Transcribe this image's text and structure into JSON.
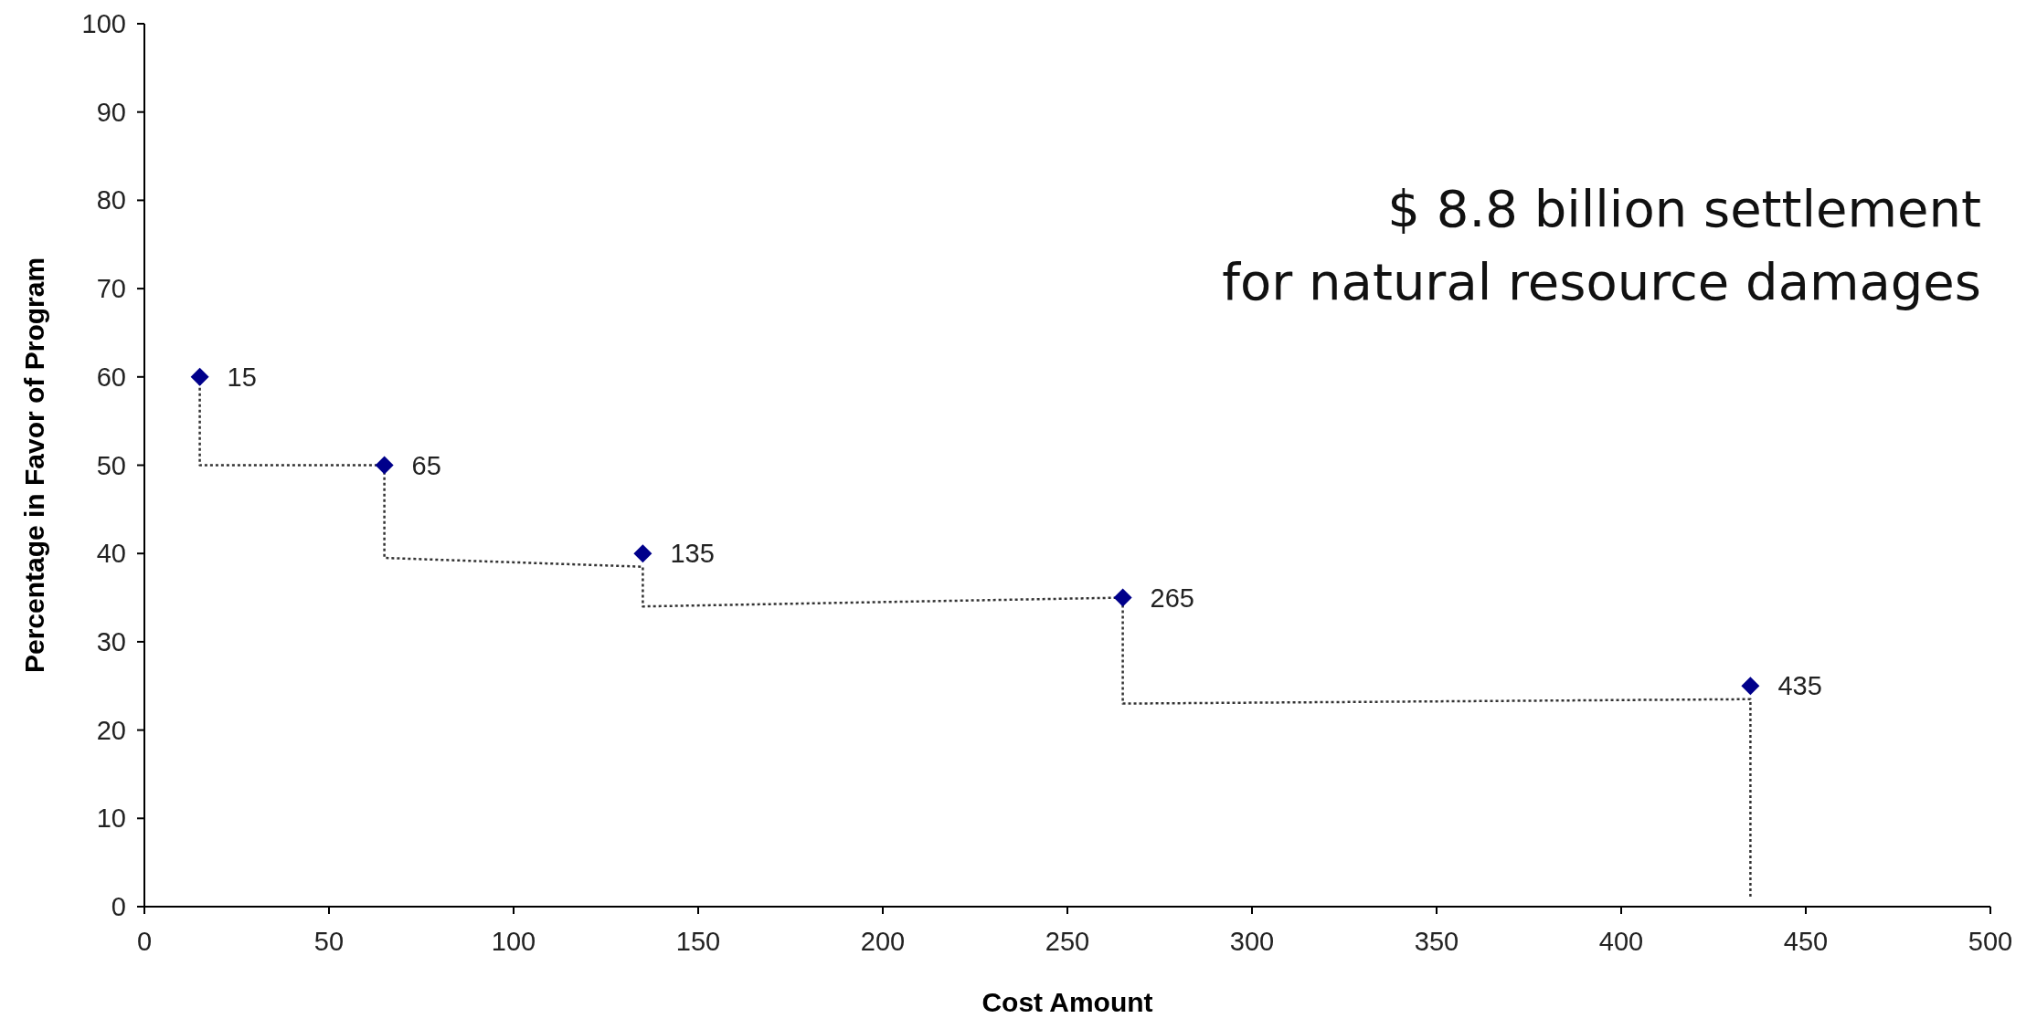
{
  "chart_data": {
    "type": "scatter",
    "xlabel": "Cost Amount",
    "ylabel": "Percentage in Favor of Program",
    "xlim": [
      0,
      500
    ],
    "xticks": [
      0,
      50,
      100,
      150,
      200,
      250,
      300,
      350,
      400,
      450,
      500
    ],
    "ylim": [
      0,
      100
    ],
    "yticks": [
      0,
      10,
      20,
      30,
      40,
      50,
      60,
      70,
      80,
      90,
      100
    ],
    "series": [
      {
        "type": "line",
        "x": [
          15,
          15,
          65,
          65,
          135,
          135,
          265,
          265,
          435,
          435
        ],
        "values": [
          60,
          50,
          50,
          39.5,
          38.5,
          34,
          35,
          23,
          23.5,
          1
        ],
        "color": "#333333",
        "line_style": "dotted",
        "marker": "none"
      },
      {
        "x": [
          15,
          65,
          135,
          265,
          435
        ],
        "values": [
          60,
          50,
          40,
          35,
          25
        ],
        "color": "#00008b",
        "marker": "diamond"
      }
    ],
    "annotations": [
      "$ 8.8 billion settlement\nfor natural resource damages",
      {
        "text": "15",
        "x": 15,
        "y": 60
      },
      {
        "text": "65",
        "x": 65,
        "y": 50
      },
      {
        "text": "135",
        "x": 135,
        "y": 40
      },
      {
        "text": "265",
        "x": 265,
        "y": 35
      },
      {
        "text": "435",
        "x": 435,
        "y": 25
      }
    ]
  }
}
